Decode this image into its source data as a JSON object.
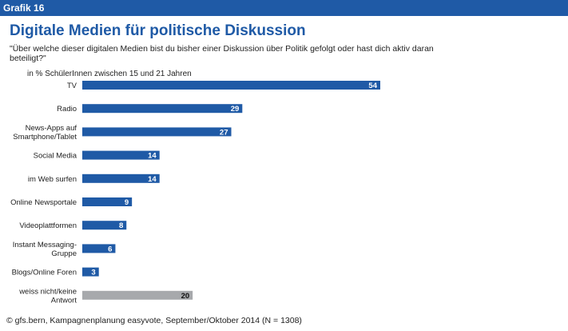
{
  "header": {
    "label": "Grafik 16"
  },
  "chart_data": {
    "type": "bar",
    "orientation": "horizontal",
    "title": "Digitale Medien für politische Diskussion",
    "subtitle": "\"Über welche dieser digitalen Medien bist du bisher einer Diskussion über Politik gefolgt oder hast dich aktiv daran beteiligt?\"",
    "unit_label": "in % SchülerInnen zwischen 15 und 21 Jahren",
    "categories": [
      [
        "TV"
      ],
      [
        "Radio"
      ],
      [
        "News-Apps auf",
        "Smartphone/Tablet"
      ],
      [
        "Social Media"
      ],
      [
        "im Web surfen"
      ],
      [
        "Online Newsportale"
      ],
      [
        "Videoplattformen"
      ],
      [
        "Instant Messaging-",
        "Gruppe"
      ],
      [
        "Blogs/Online Foren"
      ],
      [
        "weiss nicht/keine",
        "Antwort"
      ]
    ],
    "values": [
      54,
      29,
      27,
      14,
      14,
      9,
      8,
      6,
      3,
      20
    ],
    "bar_colors": [
      "#1f5aa6",
      "#1f5aa6",
      "#1f5aa6",
      "#1f5aa6",
      "#1f5aa6",
      "#1f5aa6",
      "#1f5aa6",
      "#1f5aa6",
      "#1f5aa6",
      "#a7a9ac"
    ],
    "xlim": [
      0,
      54
    ],
    "grid": false,
    "legend": "none"
  },
  "source": "© gfs.bern, Kampagnenplanung easyvote, September/Oktober 2014 (N = 1308)"
}
